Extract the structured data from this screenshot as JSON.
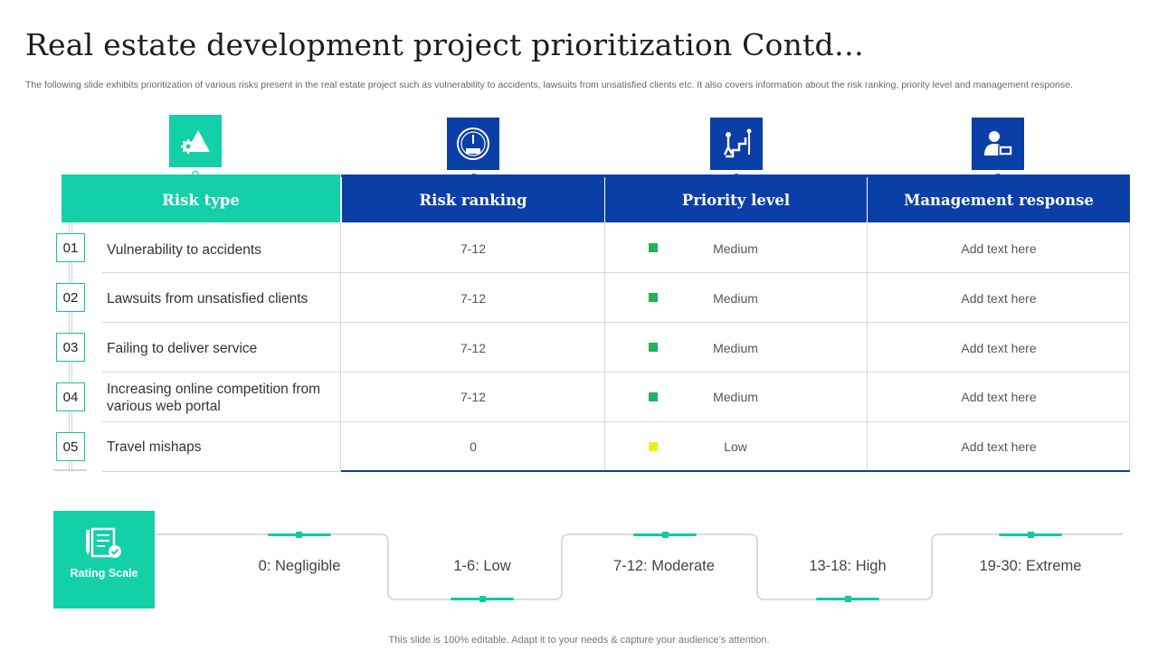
{
  "title": "Real estate development project prioritization Contd…",
  "subtitle": "The following slide exhibits prioritization of various risks present in the real estate project such as vulnerability to accidents, lawsuits from unsatisfied clients etc. It also covers information about the risk ranking, priority level and management response.",
  "table": {
    "headers": [
      "Risk type",
      "Risk ranking",
      "Priority level",
      "Management response"
    ],
    "rows": [
      {
        "num": "01",
        "risk": "Vulnerability to accidents",
        "ranking": "7-12",
        "priority": "Medium",
        "priority_color": "#21b35a",
        "response": "Add text here"
      },
      {
        "num": "02",
        "risk": "Lawsuits from unsatisfied clients",
        "ranking": "7-12",
        "priority": "Medium",
        "priority_color": "#21b35a",
        "response": "Add text here"
      },
      {
        "num": "03",
        "risk": "Failing to deliver service",
        "ranking": "7-12",
        "priority": "Medium",
        "priority_color": "#21b35a",
        "response": "Add text here"
      },
      {
        "num": "04",
        "risk": "Increasing online competition from various web portal",
        "ranking": "7-12",
        "priority": "Medium",
        "priority_color": "#21b35a",
        "response": "Add text here"
      },
      {
        "num": "05",
        "risk": "Travel mishaps",
        "ranking": "0",
        "priority": "Low",
        "priority_color": "#f2ee1a",
        "response": "Add text here"
      }
    ]
  },
  "icons": [
    "warning-shapes-icon",
    "risk-gauge-icon",
    "stairs-priority-icon",
    "user-computer-icon",
    "rating-checklist-icon"
  ],
  "rating": {
    "label": "Rating Scale",
    "levels": [
      "0: Negligible",
      "1-6: Low",
      "7-12: Moderate",
      "13-18: High",
      "19-30: Extreme"
    ]
  },
  "colors": {
    "teal": "#13d0a8",
    "blue": "#0a3fa8"
  },
  "footer": "This slide is 100% editable. Adapt it to your needs & capture your audience’s attention."
}
